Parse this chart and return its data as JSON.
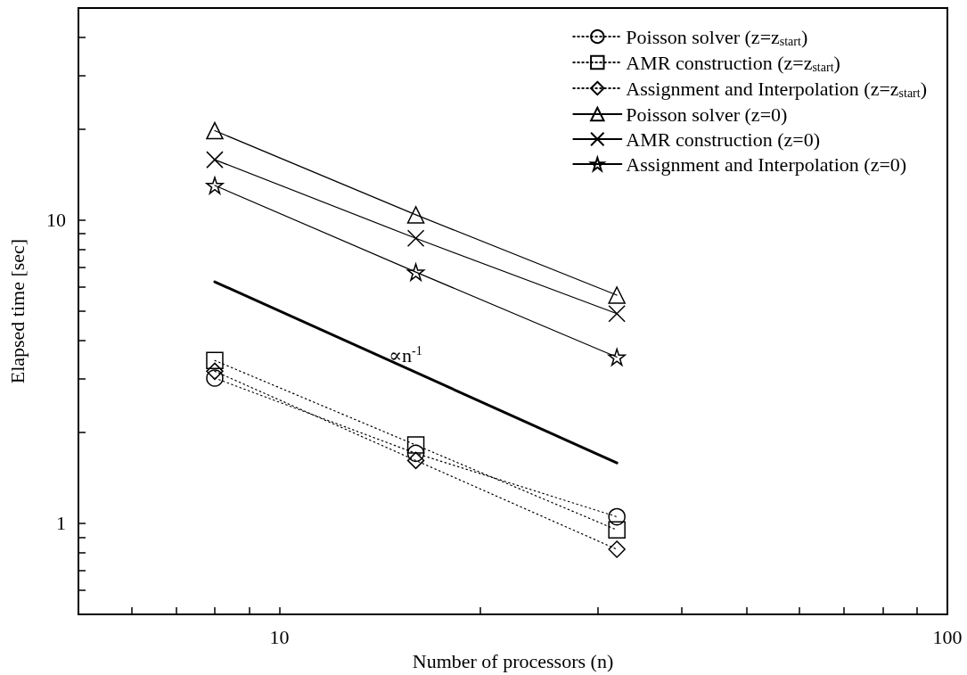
{
  "chart_data": {
    "type": "line",
    "xlabel": "Number of processors (n)",
    "ylabel": "Elapsed time [sec]",
    "log": "xy",
    "xlim": [
      5,
      100
    ],
    "ylim": [
      0.5,
      50
    ],
    "xticks": [
      {
        "value": 6,
        "label": null
      },
      {
        "value": 7,
        "label": null
      },
      {
        "value": 8,
        "label": null
      },
      {
        "value": 9,
        "label": null
      },
      10,
      {
        "value": 20,
        "label": null
      },
      {
        "value": 30,
        "label": null
      },
      {
        "value": 40,
        "label": null
      },
      {
        "value": 50,
        "label": null
      },
      {
        "value": 60,
        "label": null
      },
      {
        "value": 70,
        "label": null
      },
      {
        "value": 80,
        "label": null
      },
      {
        "value": 90,
        "label": null
      },
      100
    ],
    "yticks": [
      {
        "value": 0.6,
        "label": null
      },
      {
        "value": 0.7,
        "label": null
      },
      {
        "value": 0.8,
        "label": null
      },
      {
        "value": 0.9,
        "label": null
      },
      1,
      {
        "value": 2,
        "label": null
      },
      {
        "value": 3,
        "label": null
      },
      {
        "value": 4,
        "label": null
      },
      {
        "value": 5,
        "label": null
      },
      {
        "value": 6,
        "label": null
      },
      {
        "value": 7,
        "label": null
      },
      {
        "value": 8,
        "label": null
      },
      {
        "value": 9,
        "label": null
      },
      10,
      {
        "value": 20,
        "label": null
      },
      {
        "value": 30,
        "label": null
      },
      {
        "value": 40,
        "label": null
      }
    ],
    "grid": false,
    "legend": "top right",
    "x": [
      8,
      16,
      32
    ],
    "series": [
      {
        "name": "Poisson solver (z=z$_{start}$)",
        "color": "#000000",
        "marker": "circle",
        "line_style": "dotted",
        "values": [
          3.01,
          1.7,
          1.05
        ]
      },
      {
        "name": "AMR construction (z=z$_{start}$)",
        "color": "#000000",
        "marker": "square",
        "line_style": "dotted",
        "values": [
          3.44,
          1.81,
          0.95
        ]
      },
      {
        "name": "Assignment and Interpolation (z=z$_{start}$)",
        "color": "#000000",
        "marker": "diamond",
        "line_style": "dotted",
        "values": [
          3.17,
          1.61,
          0.82
        ]
      },
      {
        "name": "Poisson solver (z=0)",
        "color": "#000000",
        "marker": "triangle",
        "line_style": "solid",
        "values": [
          19.7,
          10.4,
          5.65
        ]
      },
      {
        "name": "AMR construction (z=0)",
        "color": "#000000",
        "marker": "cross",
        "line_style": "solid",
        "values": [
          15.8,
          8.7,
          4.91
        ]
      },
      {
        "name": "Assignment and Interpolation (z=0)",
        "color": "#000000",
        "marker": "star",
        "line_style": "solid",
        "values": [
          13.0,
          6.73,
          3.53
        ]
      },
      {
        "type": "line",
        "color": "#000000",
        "marker": "none",
        "line_style": "solid",
        "x": [
          8,
          32
        ],
        "values": [
          6.25,
          1.58
        ]
      }
    ],
    "annotations": [
      "∝n$^{-1}$"
    ]
  }
}
